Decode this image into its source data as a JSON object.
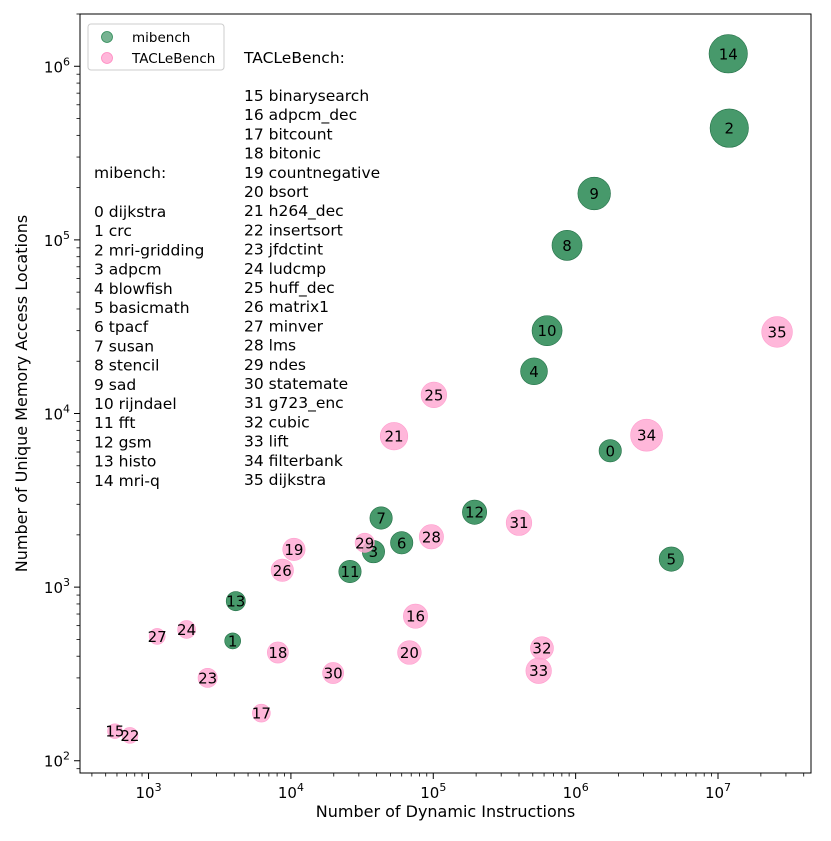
{
  "chart_data": {
    "type": "scatter",
    "xscale": "log",
    "yscale": "log",
    "xlim": [
      330,
      45000000
    ],
    "ylim": [
      85,
      2000000
    ],
    "xlabel": "Number of Dynamic Instructions",
    "ylabel": "Number of Unique Memory Access Locations",
    "x_ticks": [
      {
        "value": 1000,
        "label": "10^3"
      },
      {
        "value": 10000,
        "label": "10^4"
      },
      {
        "value": 100000,
        "label": "10^5"
      },
      {
        "value": 1000000,
        "label": "10^6"
      },
      {
        "value": 10000000,
        "label": "10^7"
      }
    ],
    "y_ticks": [
      {
        "value": 100,
        "label": "10^2"
      },
      {
        "value": 1000,
        "label": "10^3"
      },
      {
        "value": 10000,
        "label": "10^4"
      },
      {
        "value": 100000,
        "label": "10^5"
      },
      {
        "value": 1000000,
        "label": "10^6"
      }
    ],
    "colors": {
      "mibench": "#2e8b57",
      "tacle": "#ffaad4"
    },
    "legend": {
      "position": "top-left",
      "entries": [
        {
          "name": "mibench",
          "series": "mibench"
        },
        {
          "name": "TACLeBench",
          "series": "tacle"
        }
      ]
    },
    "series": [
      {
        "name": "mibench",
        "key": "mibench",
        "points": [
          {
            "id": "0",
            "x": 1750000,
            "y": 6100,
            "size": 3.5
          },
          {
            "id": "1",
            "x": 3900,
            "y": 490,
            "size": 2.5
          },
          {
            "id": "2",
            "x": 12000000,
            "y": 440000,
            "size": 6
          },
          {
            "id": "3",
            "x": 38000,
            "y": 1600,
            "size": 3.5
          },
          {
            "id": "4",
            "x": 510000,
            "y": 17500,
            "size": 4.2
          },
          {
            "id": "5",
            "x": 4700000,
            "y": 1450,
            "size": 3.8
          },
          {
            "id": "6",
            "x": 60000,
            "y": 1800,
            "size": 3.5
          },
          {
            "id": "7",
            "x": 43000,
            "y": 2500,
            "size": 3.5
          },
          {
            "id": "8",
            "x": 870000,
            "y": 93000,
            "size": 4.7
          },
          {
            "id": "9",
            "x": 1350000,
            "y": 185000,
            "size": 5.1
          },
          {
            "id": "10",
            "x": 630000,
            "y": 30000,
            "size": 4.7
          },
          {
            "id": "11",
            "x": 26000,
            "y": 1230,
            "size": 3.5
          },
          {
            "id": "12",
            "x": 195000,
            "y": 2700,
            "size": 3.8
          },
          {
            "id": "13",
            "x": 4100,
            "y": 830,
            "size": 3.0
          },
          {
            "id": "14",
            "x": 11800000,
            "y": 1180000,
            "size": 6
          }
        ]
      },
      {
        "name": "TACLeBench",
        "key": "tacle",
        "points": [
          {
            "id": "15",
            "x": 580,
            "y": 148,
            "size": 2.3
          },
          {
            "id": "16",
            "x": 75000,
            "y": 680,
            "size": 3.8
          },
          {
            "id": "17",
            "x": 6200,
            "y": 188,
            "size": 2.8
          },
          {
            "id": "18",
            "x": 8100,
            "y": 420,
            "size": 3.3
          },
          {
            "id": "19",
            "x": 10500,
            "y": 1650,
            "size": 3.5
          },
          {
            "id": "20",
            "x": 68000,
            "y": 420,
            "size": 3.7
          },
          {
            "id": "21",
            "x": 53000,
            "y": 7400,
            "size": 4.3
          },
          {
            "id": "22",
            "x": 740,
            "y": 140,
            "size": 2.5
          },
          {
            "id": "23",
            "x": 2600,
            "y": 300,
            "size": 3.0
          },
          {
            "id": "24",
            "x": 1850,
            "y": 570,
            "size": 2.8
          },
          {
            "id": "25",
            "x": 101000,
            "y": 12800,
            "size": 4.0
          },
          {
            "id": "26",
            "x": 8700,
            "y": 1250,
            "size": 3.5
          },
          {
            "id": "27",
            "x": 1150,
            "y": 520,
            "size": 2.5
          },
          {
            "id": "28",
            "x": 97000,
            "y": 1950,
            "size": 3.8
          },
          {
            "id": "29",
            "x": 33000,
            "y": 1800,
            "size": 3.0
          },
          {
            "id": "30",
            "x": 19800,
            "y": 320,
            "size": 3.3
          },
          {
            "id": "31",
            "x": 400000,
            "y": 2350,
            "size": 4.0
          },
          {
            "id": "32",
            "x": 580000,
            "y": 445,
            "size": 3.6
          },
          {
            "id": "33",
            "x": 550000,
            "y": 330,
            "size": 4.0
          },
          {
            "id": "34",
            "x": 3150000,
            "y": 7500,
            "size": 5.0
          },
          {
            "id": "35",
            "x": 26000000,
            "y": 29500,
            "size": 4.8
          }
        ]
      }
    ],
    "annotations": {
      "tacle_title": "TACLeBench:",
      "tacle_list": [
        "15 binarysearch",
        "16 adpcm_dec",
        "17 bitcount",
        "18 bitonic",
        "19 countnegative",
        "20 bsort",
        "21 h264_dec",
        "22 insertsort",
        "23 jfdctint",
        "24 ludcmp",
        "25 huff_dec",
        "26 matrix1",
        "27 minver",
        "28 lms",
        "29 ndes",
        "30 statemate",
        "31 g723_enc",
        "32 cubic",
        "33 lift",
        "34 filterbank",
        "35 dijkstra"
      ],
      "mibench_title": "mibench:",
      "mibench_list": [
        "0 dijkstra",
        "1 crc",
        "2 mri-gridding",
        "3 adpcm",
        "4 blowfish",
        "5 basicmath",
        "6 tpacf",
        "7 susan",
        "8 stencil",
        "9 sad",
        "10 rijndael",
        "11 fft",
        "12 gsm",
        "13 histo",
        "14 mri-q"
      ]
    }
  }
}
